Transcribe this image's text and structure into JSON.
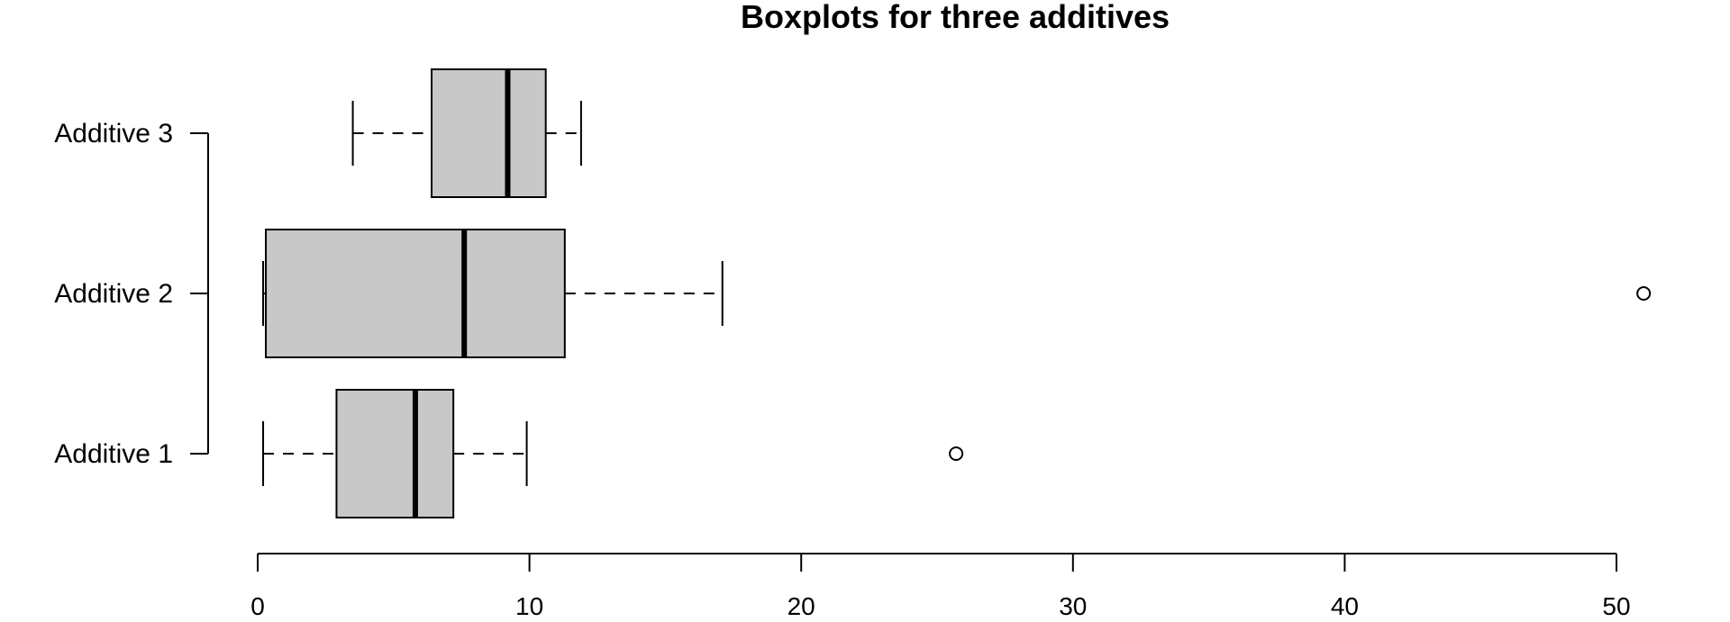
{
  "chart_data": {
    "type": "boxplot",
    "orientation": "horizontal",
    "title": "Boxplots for three additives",
    "xlabel": "",
    "ylabel": "",
    "xlim": [
      0,
      50
    ],
    "x_ticks": [
      0,
      10,
      20,
      30,
      40,
      50
    ],
    "categories": [
      "Additive 1",
      "Additive 2",
      "Additive 3"
    ],
    "series": [
      {
        "category": "Additive 1",
        "whisker_low": 0.2,
        "q1": 2.9,
        "median": 5.8,
        "q3": 7.2,
        "whisker_high": 9.9,
        "outliers": [
          25.7
        ]
      },
      {
        "category": "Additive 2",
        "whisker_low": 0.2,
        "q1": 0.3,
        "median": 7.6,
        "q3": 11.3,
        "whisker_high": 17.1,
        "outliers": [
          51.0
        ]
      },
      {
        "category": "Additive 3",
        "whisker_low": 3.5,
        "q1": 6.4,
        "median": 9.2,
        "q3": 10.6,
        "whisker_high": 11.9,
        "outliers": []
      }
    ],
    "box_fill": "#c8c8c8",
    "line_color": "#000000",
    "grid": false,
    "legend": "none"
  }
}
